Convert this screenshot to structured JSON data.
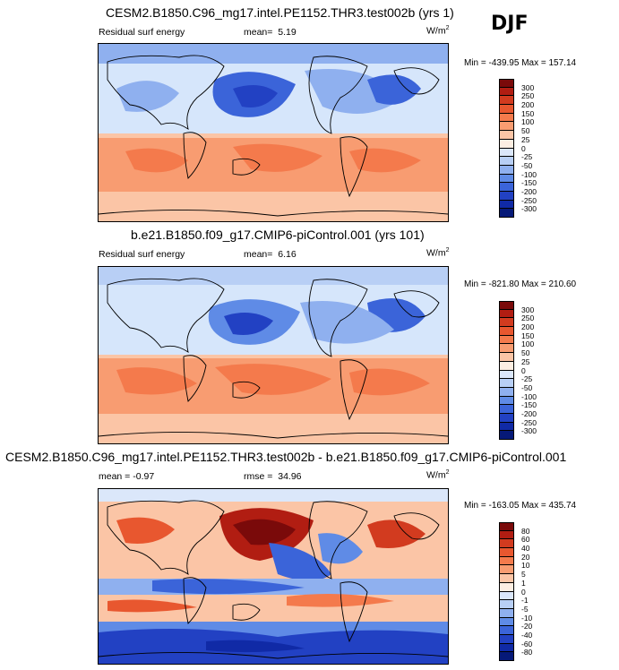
{
  "season": "DJF",
  "panels": [
    {
      "title": "CESM2.B1850.C96_mg17.intel.PE1152.THR3.test002b (yrs 1)",
      "left_label": "Residual surf energy",
      "stat_label": "mean=",
      "stat_value": "5.19",
      "units": "W/m",
      "units_sup": "2",
      "minmax": "Min = -439.95 Max = 157.14",
      "colorbar": {
        "labels": [
          "300",
          "250",
          "200",
          "150",
          "100",
          "50",
          "25",
          "0",
          "-25",
          "-50",
          "-100",
          "-150",
          "-200",
          "-250",
          "-300"
        ],
        "colors": [
          "#7a0a0a",
          "#b11d12",
          "#d23b1f",
          "#e8572f",
          "#f47a4c",
          "#f89c71",
          "#fbc5a6",
          "#fdeee2",
          "#dbe7fa",
          "#b8cff5",
          "#8fb0ef",
          "#5f8be6",
          "#3b64d9",
          "#2241c3",
          "#102aa6",
          "#061978"
        ]
      }
    },
    {
      "title": "b.e21.B1850.f09_g17.CMIP6-piControl.001 (yrs 101)",
      "left_label": "Residual surf energy",
      "stat_label": "mean=",
      "stat_value": "6.16",
      "units": "W/m",
      "units_sup": "2",
      "minmax": "Min = -821.80 Max = 210.60",
      "colorbar": {
        "labels": [
          "300",
          "250",
          "200",
          "150",
          "100",
          "50",
          "25",
          "0",
          "-25",
          "-50",
          "-100",
          "-150",
          "-200",
          "-250",
          "-300"
        ],
        "colors": [
          "#7a0a0a",
          "#b11d12",
          "#d23b1f",
          "#e8572f",
          "#f47a4c",
          "#f89c71",
          "#fbc5a6",
          "#fdeee2",
          "#dbe7fa",
          "#b8cff5",
          "#8fb0ef",
          "#5f8be6",
          "#3b64d9",
          "#2241c3",
          "#102aa6",
          "#061978"
        ]
      }
    },
    {
      "title": "CESM2.B1850.C96_mg17.intel.PE1152.THR3.test002b - b.e21.B1850.f09_g17.CMIP6-piControl.001",
      "left_label": "mean =  -0.97",
      "stat_label": "rmse =",
      "stat_value": "34.96",
      "units": "W/m",
      "units_sup": "2",
      "minmax": "Min = -163.05 Max = 435.74",
      "colorbar": {
        "labels": [
          "80",
          "60",
          "40",
          "20",
          "10",
          "5",
          "1",
          "0",
          "-1",
          "-5",
          "-10",
          "-20",
          "-40",
          "-60",
          "-80"
        ],
        "colors": [
          "#7a0a0a",
          "#b11d12",
          "#d23b1f",
          "#e8572f",
          "#f47a4c",
          "#f89c71",
          "#fbc5a6",
          "#fdeee2",
          "#dbe7fa",
          "#b8cff5",
          "#8fb0ef",
          "#5f8be6",
          "#3b64d9",
          "#2241c3",
          "#102aa6",
          "#061978"
        ]
      }
    }
  ],
  "chart_data": [
    {
      "type": "heatmap",
      "title": "CESM2.B1850.C96_mg17.intel.PE1152.THR3.test002b (yrs 1)",
      "variable": "Residual surf energy",
      "season": "DJF",
      "units": "W/m2",
      "mean": 5.19,
      "min": -439.95,
      "max": 157.14,
      "contour_levels": [
        -300,
        -250,
        -200,
        -150,
        -100,
        -50,
        -25,
        0,
        25,
        50,
        100,
        150,
        200,
        250,
        300
      ]
    },
    {
      "type": "heatmap",
      "title": "b.e21.B1850.f09_g17.CMIP6-piControl.001 (yrs 101)",
      "variable": "Residual surf energy",
      "season": "DJF",
      "units": "W/m2",
      "mean": 6.16,
      "min": -821.8,
      "max": 210.6,
      "contour_levels": [
        -300,
        -250,
        -200,
        -150,
        -100,
        -50,
        -25,
        0,
        25,
        50,
        100,
        150,
        200,
        250,
        300
      ]
    },
    {
      "type": "heatmap",
      "title": "CESM2.B1850.C96_mg17.intel.PE1152.THR3.test002b - b.e21.B1850.f09_g17.CMIP6-piControl.001",
      "season": "DJF",
      "units": "W/m2",
      "mean": -0.97,
      "rmse": 34.96,
      "min": -163.05,
      "max": 435.74,
      "contour_levels": [
        -80,
        -60,
        -40,
        -20,
        -10,
        -5,
        -1,
        0,
        1,
        5,
        10,
        20,
        40,
        60,
        80
      ]
    }
  ]
}
